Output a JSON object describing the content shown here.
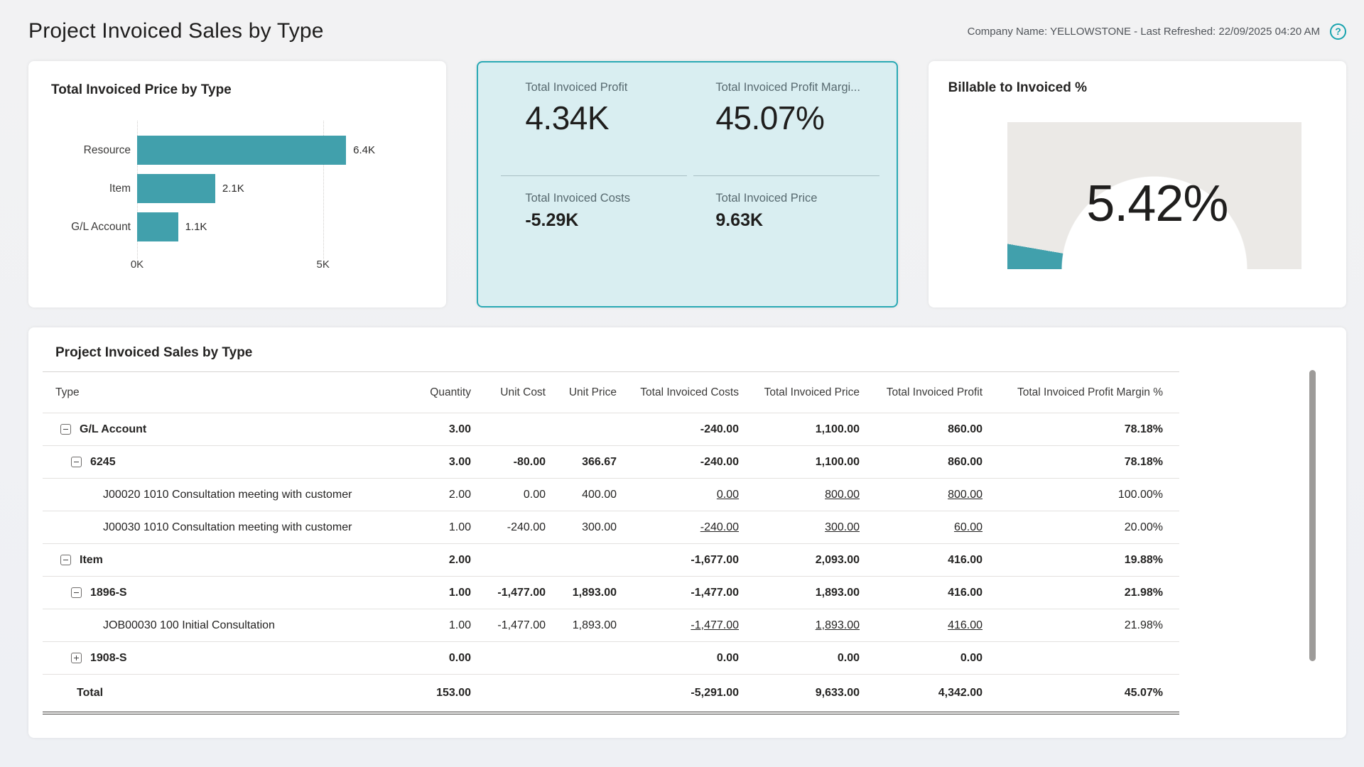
{
  "page": {
    "title": "Project Invoiced Sales by Type",
    "meta": "Company Name: YELLOWSTONE - Last Refreshed: 22/09/2025 04:20 AM",
    "help_glyph": "?"
  },
  "colors": {
    "accent_teal": "#41a0ac",
    "kpi_card_bg": "#d9eef1",
    "kpi_card_border": "#2aa9b4",
    "gauge_track": "#ebe9e6",
    "page_bg": "#f1f2f4"
  },
  "chart_data": [
    {
      "type": "bar",
      "orientation": "horizontal",
      "title": "Total Invoiced Price by Type",
      "categories": [
        "Resource",
        "Item",
        "G/L Account"
      ],
      "values": [
        6400,
        2100,
        1100
      ],
      "value_labels": [
        "6.4K",
        "2.1K",
        "1.1K"
      ],
      "xlim": [
        0,
        6400
      ],
      "x_ticks": [
        {
          "label": "0K",
          "value": 0
        },
        {
          "label": "5K",
          "value": 5000
        }
      ],
      "grid": "dotted-vertical",
      "bar_color": "#41a0ac"
    },
    {
      "type": "gauge",
      "title": "Billable to Invoiced %",
      "value": 5.42,
      "min": 0,
      "max": 100,
      "display": "5.42%"
    }
  ],
  "kpi": {
    "items": [
      {
        "label": "Total Invoiced Profit",
        "value": "4.34K"
      },
      {
        "label": "Total Invoiced Profit Margi...",
        "value": "45.07%"
      },
      {
        "label": "Total Invoiced Costs",
        "value": "-5.29K"
      },
      {
        "label": "Total Invoiced Price",
        "value": "9.63K"
      }
    ]
  },
  "table": {
    "title": "Project Invoiced Sales by Type",
    "columns": [
      "Type",
      "Quantity",
      "Unit Cost",
      "Unit Price",
      "Total Invoiced Costs",
      "Total Invoiced Price",
      "Total Invoiced Profit",
      "Total Invoiced Profit Margin %"
    ],
    "rows": [
      {
        "type": "G/L Account",
        "level": 0,
        "toggle": "collapse",
        "bold": true,
        "quantity": "3.00",
        "unit_cost": "",
        "unit_price": "",
        "costs": "-240.00",
        "price": "1,100.00",
        "profit": "860.00",
        "margin": "78.18%",
        "links": []
      },
      {
        "type": "6245",
        "level": 1,
        "toggle": "collapse",
        "bold": true,
        "quantity": "3.00",
        "unit_cost": "-80.00",
        "unit_price": "366.67",
        "costs": "-240.00",
        "price": "1,100.00",
        "profit": "860.00",
        "margin": "78.18%",
        "links": []
      },
      {
        "type": "J00020 1010 Consultation meeting with customer",
        "level": 2,
        "toggle": null,
        "bold": false,
        "quantity": "2.00",
        "unit_cost": "0.00",
        "unit_price": "400.00",
        "costs": "0.00",
        "price": "800.00",
        "profit": "800.00",
        "margin": "100.00%",
        "links": [
          "costs",
          "price",
          "profit"
        ]
      },
      {
        "type": "J00030 1010 Consultation meeting with customer",
        "level": 2,
        "toggle": null,
        "bold": false,
        "quantity": "1.00",
        "unit_cost": "-240.00",
        "unit_price": "300.00",
        "costs": "-240.00",
        "price": "300.00",
        "profit": "60.00",
        "margin": "20.00%",
        "links": [
          "costs",
          "price",
          "profit"
        ]
      },
      {
        "type": "Item",
        "level": 0,
        "toggle": "collapse",
        "bold": true,
        "quantity": "2.00",
        "unit_cost": "",
        "unit_price": "",
        "costs": "-1,677.00",
        "price": "2,093.00",
        "profit": "416.00",
        "margin": "19.88%",
        "links": []
      },
      {
        "type": "1896-S",
        "level": 1,
        "toggle": "collapse",
        "bold": true,
        "quantity": "1.00",
        "unit_cost": "-1,477.00",
        "unit_price": "1,893.00",
        "costs": "-1,477.00",
        "price": "1,893.00",
        "profit": "416.00",
        "margin": "21.98%",
        "links": []
      },
      {
        "type": "JOB00030 100 Initial Consultation",
        "level": 2,
        "toggle": null,
        "bold": false,
        "quantity": "1.00",
        "unit_cost": "-1,477.00",
        "unit_price": "1,893.00",
        "costs": "-1,477.00",
        "price": "1,893.00",
        "profit": "416.00",
        "margin": "21.98%",
        "links": [
          "costs",
          "price",
          "profit"
        ]
      },
      {
        "type": "1908-S",
        "level": 1,
        "toggle": "expand",
        "bold": true,
        "quantity": "0.00",
        "unit_cost": "",
        "unit_price": "",
        "costs": "0.00",
        "price": "0.00",
        "profit": "0.00",
        "margin": "",
        "links": []
      }
    ],
    "total": {
      "type": "Total",
      "quantity": "153.00",
      "unit_cost": "",
      "unit_price": "",
      "costs": "-5,291.00",
      "price": "9,633.00",
      "profit": "4,342.00",
      "margin": "45.07%"
    }
  }
}
